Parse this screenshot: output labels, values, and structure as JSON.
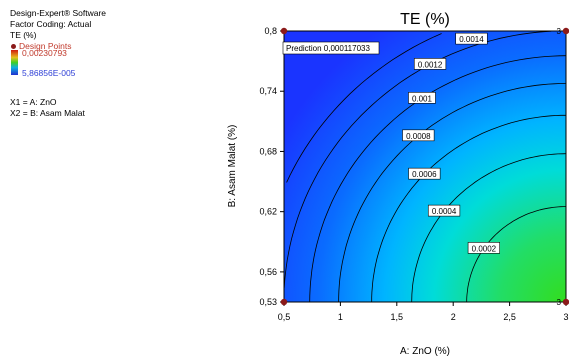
{
  "info": {
    "software": "Design-Expert® Software",
    "coding": "Factor Coding: Actual",
    "response": "TE (%)",
    "design_points_label": "Design Points",
    "scale_high": "0,00230793",
    "scale_low": "5,86856E-005",
    "x1": "X1 = A: ZnO",
    "x2": "X2 = B: Asam Malat"
  },
  "colors": {
    "low": "#1a3cff",
    "mid": "#00e0ff",
    "high": "#33dd1e",
    "point": "#8b1a1a",
    "label_red": "#c0392b",
    "label_blue": "#2e3fd6"
  },
  "chart_data": {
    "type": "contour",
    "title": "TE (%)",
    "xlabel": "A: ZnO (%)",
    "ylabel": "B: Asam Malat (%)",
    "xlim": [
      0.5,
      3
    ],
    "ylim": [
      0.53,
      0.8
    ],
    "x_ticks": [
      0.5,
      1,
      1.5,
      2,
      2.5,
      3
    ],
    "x_tick_labels": [
      "0,5",
      "1",
      "1,5",
      "2",
      "2,5",
      "3"
    ],
    "y_ticks": [
      0.53,
      0.56,
      0.62,
      0.68,
      0.74,
      0.8
    ],
    "y_tick_labels": [
      "0,53",
      "0,56",
      "0,62",
      "0,68",
      "0,74",
      "0,8"
    ],
    "contour_levels": [
      0.0002,
      0.0004,
      0.0006,
      0.0008,
      0.001,
      0.0012,
      0.0014
    ],
    "contour_labels": [
      "0.0002",
      "0.0004",
      "0.0006",
      "0.0008",
      "0.001",
      "0.0012",
      "0.0014"
    ],
    "color_range": [
      5.86856e-05,
      0.00230793
    ],
    "prediction_label": "Prediction 0,000117033",
    "design_points": [
      {
        "x": 0.5,
        "y": 0.8,
        "count": ""
      },
      {
        "x": 3,
        "y": 0.8,
        "count": "3"
      },
      {
        "x": 0.5,
        "y": 0.53,
        "count": ""
      },
      {
        "x": 3,
        "y": 0.53,
        "count": "3"
      }
    ],
    "grid": false
  }
}
